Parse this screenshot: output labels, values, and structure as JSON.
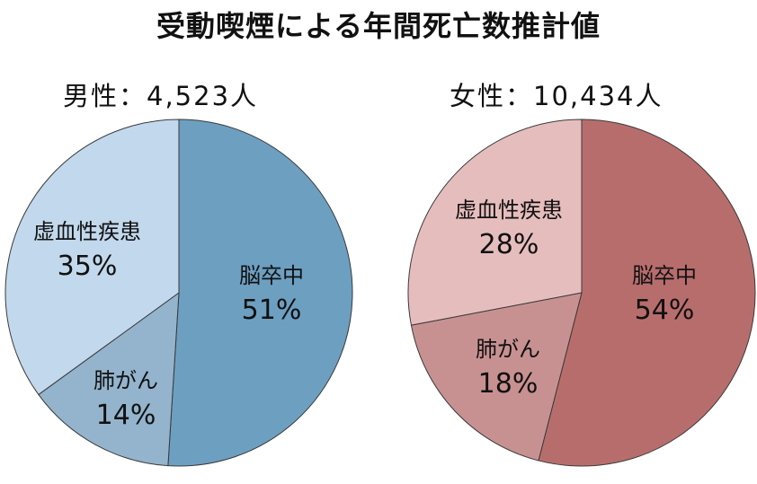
{
  "title": "受動喫煙による年間死亡数推計値",
  "chart_data": [
    {
      "type": "pie",
      "title": "男性：4,523人",
      "slices": [
        {
          "label": "脳卒中",
          "value": 51,
          "value_label": "51%",
          "color": "#6d9fc1"
        },
        {
          "label": "肺がん",
          "value": 14,
          "value_label": "14%",
          "color": "#93b4cc"
        },
        {
          "label": "虚血性疾患",
          "value": 35,
          "value_label": "35%",
          "color": "#c2d8ec"
        }
      ]
    },
    {
      "type": "pie",
      "title": "女性：10,434人",
      "slices": [
        {
          "label": "脳卒中",
          "value": 54,
          "value_label": "54%",
          "color": "#b86d6d"
        },
        {
          "label": "肺がん",
          "value": 18,
          "value_label": "18%",
          "color": "#c89191"
        },
        {
          "label": "虚血性疾患",
          "value": 28,
          "value_label": "28%",
          "color": "#e6bdbd"
        }
      ]
    }
  ]
}
